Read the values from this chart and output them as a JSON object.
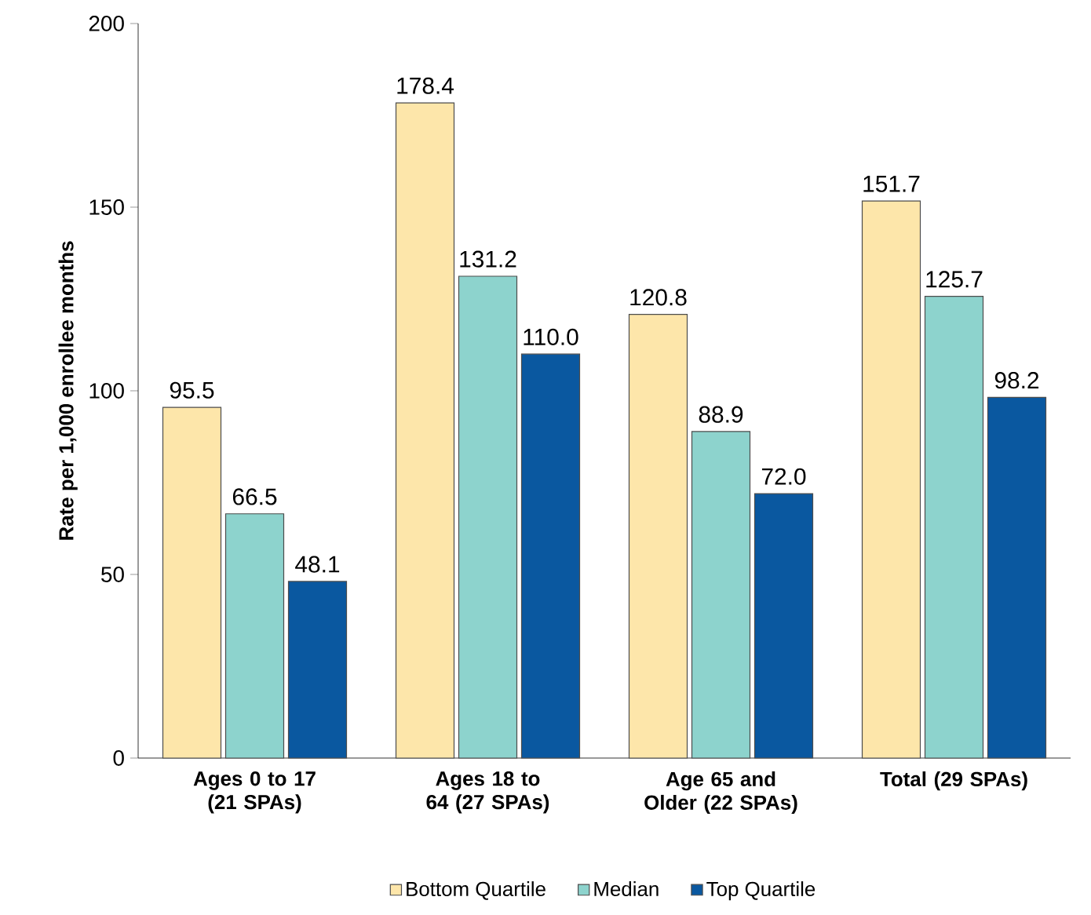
{
  "chart_data": {
    "type": "bar",
    "ylabel": "Rate per 1,000 enrollee months",
    "categories": [
      "Ages 0 to 17 (21 SPAs)",
      "Ages 18 to 64 (27 SPAs)",
      "Age 65 and Older (22 SPAs)",
      "Total (29 SPAs)"
    ],
    "series": [
      {
        "name": "Bottom Quartile",
        "color": "#fde6aa",
        "values": [
          95.5,
          178.4,
          120.8,
          151.7
        ],
        "value_labels": [
          "95.5",
          "178.4",
          "120.8",
          "151.7"
        ]
      },
      {
        "name": "Median",
        "color": "#8dd3cd",
        "values": [
          66.5,
          131.2,
          88.9,
          125.7
        ],
        "value_labels": [
          "66.5",
          "131.2",
          "88.9",
          "125.7"
        ]
      },
      {
        "name": "Top Quartile",
        "color": "#0a58a0",
        "values": [
          48.1,
          110.0,
          72.0,
          98.2
        ],
        "value_labels": [
          "48.1",
          "110.0",
          "72.0",
          "98.2"
        ]
      }
    ],
    "ylim": [
      0,
      200
    ],
    "yticks": [
      0,
      50,
      100,
      150,
      200
    ],
    "grid": false,
    "legend": "bottom"
  }
}
